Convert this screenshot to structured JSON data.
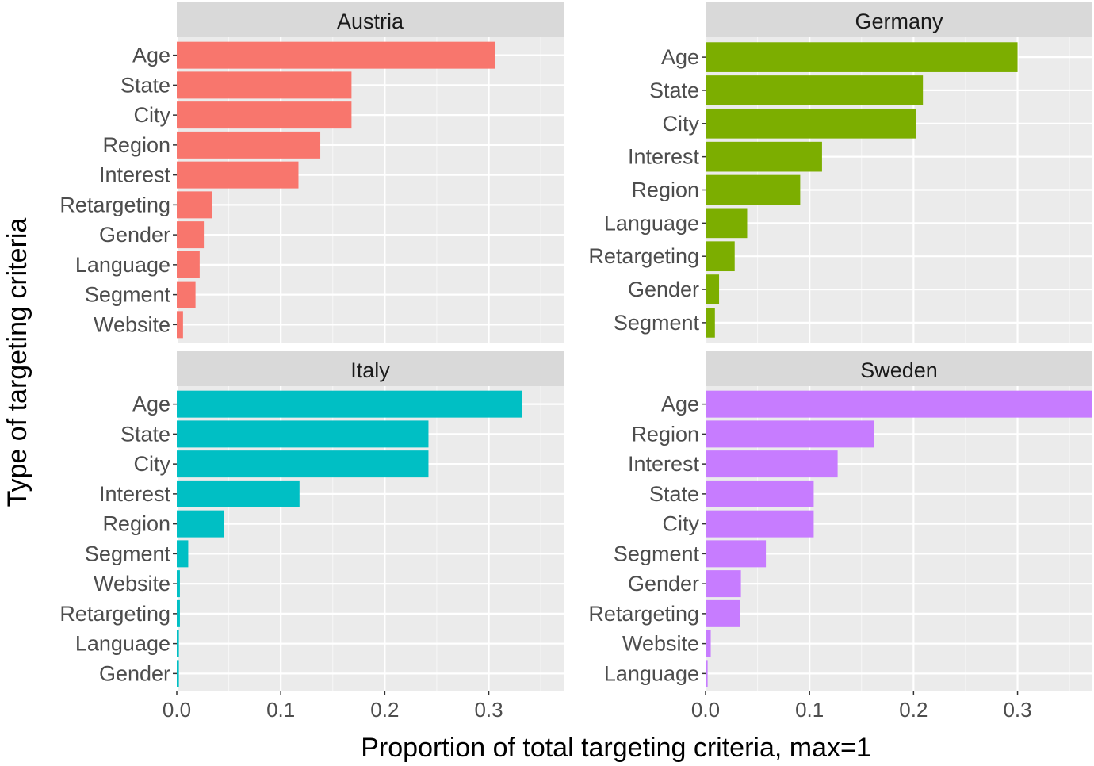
{
  "chart_data": {
    "type": "bar",
    "orientation": "horizontal",
    "layout": "facet-grid-2x2",
    "xlabel": "Proportion of total targeting criteria, max=1",
    "ylabel": "Type of targeting criteria",
    "xlim": [
      0,
      0.372
    ],
    "x_ticks": [
      0.0,
      0.1,
      0.2,
      0.3
    ],
    "x_tick_labels": [
      "0.0",
      "0.1",
      "0.2",
      "0.3"
    ],
    "grid": true,
    "panels": [
      {
        "title": "Austria",
        "color": "#F8766D",
        "categories": [
          "Age",
          "State",
          "City",
          "Region",
          "Interest",
          "Retargeting",
          "Gender",
          "Language",
          "Segment",
          "Website"
        ],
        "values": [
          0.306,
          0.168,
          0.168,
          0.138,
          0.117,
          0.034,
          0.026,
          0.022,
          0.018,
          0.006
        ]
      },
      {
        "title": "Germany",
        "color": "#7CAE00",
        "categories": [
          "Age",
          "State",
          "City",
          "Interest",
          "Region",
          "Language",
          "Retargeting",
          "Gender",
          "Segment"
        ],
        "values": [
          0.3,
          0.209,
          0.202,
          0.112,
          0.091,
          0.04,
          0.028,
          0.013,
          0.009
        ]
      },
      {
        "title": "Italy",
        "color": "#00BFC4",
        "categories": [
          "Age",
          "State",
          "City",
          "Interest",
          "Region",
          "Segment",
          "Website",
          "Retargeting",
          "Language",
          "Gender"
        ],
        "values": [
          0.332,
          0.242,
          0.242,
          0.118,
          0.045,
          0.011,
          0.003,
          0.003,
          0.002,
          0.002
        ]
      },
      {
        "title": "Sweden",
        "color": "#C77CFF",
        "categories": [
          "Age",
          "Region",
          "Interest",
          "State",
          "City",
          "Segment",
          "Gender",
          "Retargeting",
          "Website",
          "Language"
        ],
        "values": [
          0.374,
          0.162,
          0.127,
          0.104,
          0.104,
          0.058,
          0.034,
          0.033,
          0.005,
          0.002
        ]
      }
    ]
  }
}
